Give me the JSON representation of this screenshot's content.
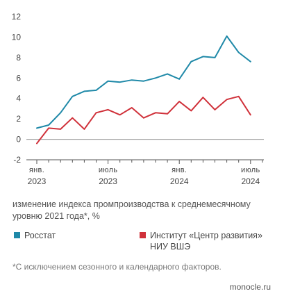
{
  "chart_data": {
    "type": "line",
    "yticks": [
      "12",
      "10",
      "8",
      "6",
      "4",
      "2",
      "0",
      "-2"
    ],
    "ylim": [
      -2,
      12
    ],
    "grid": false,
    "xtick_labels": [
      {
        "top": "янв.",
        "bottom": "2023"
      },
      {
        "top": "июль",
        "bottom": "2023"
      },
      {
        "top": "янв.",
        "bottom": "2024"
      },
      {
        "top": "июль",
        "bottom": "2024"
      }
    ],
    "x": [
      "2023-01",
      "2023-02",
      "2023-03",
      "2023-04",
      "2023-05",
      "2023-06",
      "2023-07",
      "2023-08",
      "2023-09",
      "2023-10",
      "2023-11",
      "2023-12",
      "2024-01",
      "2024-02",
      "2024-03",
      "2024-04",
      "2024-05",
      "2024-06",
      "2024-07"
    ],
    "series": [
      {
        "name": "Росстат",
        "color": "#1f89a8",
        "values": [
          1.1,
          1.4,
          2.6,
          4.2,
          4.7,
          4.8,
          5.7,
          5.6,
          5.8,
          5.7,
          6.0,
          6.4,
          5.9,
          7.6,
          8.1,
          8.0,
          10.1,
          8.5,
          7.6
        ]
      },
      {
        "name": "Институт «Центр развития» НИУ ВШЭ",
        "color": "#d0313a",
        "values": [
          -0.4,
          1.1,
          1.0,
          2.1,
          1.0,
          2.6,
          2.9,
          2.4,
          3.1,
          2.1,
          2.6,
          2.5,
          3.7,
          2.8,
          4.1,
          2.9,
          3.9,
          4.2,
          2.4
        ]
      }
    ]
  },
  "caption": "изменение индекса промпроизводства к среднемесячному уровню 2021 года*, %",
  "legend": {
    "item1": "Росстат",
    "item2": "Институт «Центр развития» НИУ ВШЭ"
  },
  "footnote": "*С исключением сезонного и календарного факторов.",
  "source": "monocle.ru"
}
